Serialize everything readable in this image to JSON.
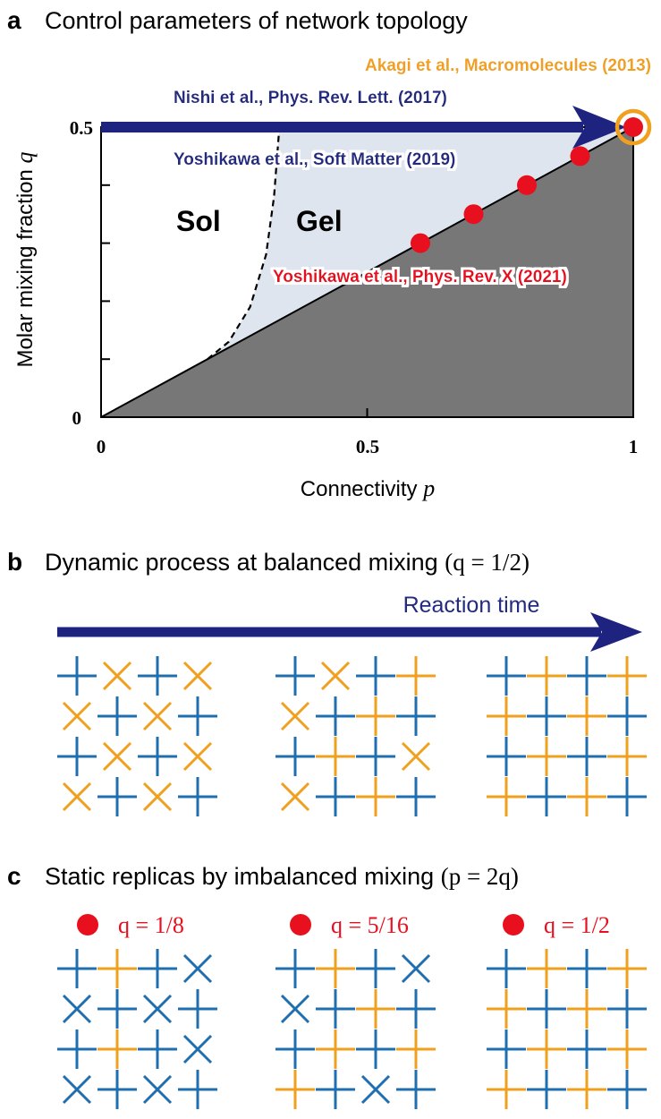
{
  "panel_a": {
    "letter": "a",
    "title": "Control parameters of network topology",
    "xlabel_text": "Connectivity",
    "xlabel_var": "p",
    "ylabel_text": "Molar mixing fraction",
    "ylabel_var": "q",
    "xticks": [
      "0",
      "0.5",
      "1"
    ],
    "yticks": [
      "0",
      "0.5"
    ],
    "region_sol": "Sol",
    "region_gel": "Gel",
    "refs": {
      "akagi": "Akagi et al., Macromolecules (2013)",
      "nishi": "Nishi et al., Phys. Rev. Lett. (2017)",
      "yoshikawa2019": "Yoshikawa et al., Soft Matter (2019)",
      "yoshikawa2021": "Yoshikawa et al., Phys. Rev. X (2021)"
    }
  },
  "chart_data": {
    "type": "scatter",
    "xlim": [
      0,
      1
    ],
    "ylim": [
      0,
      0.5
    ],
    "points": [
      {
        "x": 0.6,
        "y": 0.3
      },
      {
        "x": 0.7,
        "y": 0.35
      },
      {
        "x": 0.8,
        "y": 0.4
      },
      {
        "x": 0.9,
        "y": 0.45
      },
      {
        "x": 1.0,
        "y": 0.5
      }
    ],
    "boundary_line": "q = p/2",
    "gel_transition_curve": [
      [
        0.2,
        0.1
      ],
      [
        0.24,
        0.13
      ],
      [
        0.28,
        0.19
      ],
      [
        0.31,
        0.28
      ],
      [
        0.325,
        0.38
      ],
      [
        0.335,
        0.5
      ]
    ],
    "highlight_point": {
      "x": 1.0,
      "y": 0.5
    },
    "arrow_along": "q = 0.5"
  },
  "panel_b": {
    "letter": "b",
    "title": "Dynamic process at balanced mixing",
    "title_math": "(q = 1/2)",
    "arrow_label": "Reaction time",
    "grids": [
      [
        "bp",
        "ox",
        "bp",
        "ox",
        "ox",
        "bp",
        "ox",
        "bp",
        "bp",
        "ox",
        "bp",
        "ox",
        "ox",
        "bp",
        "ox",
        "bp"
      ],
      [
        "bp",
        "ox",
        "bp",
        "op",
        "ox",
        "bp",
        "op",
        "bp",
        "bp",
        "op",
        "bp",
        "ox",
        "ox",
        "bp",
        "op",
        "bp"
      ],
      [
        "bp",
        "op",
        "bp",
        "op",
        "op",
        "bp",
        "op",
        "bp",
        "bp",
        "op",
        "bp",
        "op",
        "op",
        "bp",
        "op",
        "bp"
      ]
    ]
  },
  "panel_c": {
    "letter": "c",
    "title": "Static replicas by imbalanced mixing",
    "title_math": "(p = 2q)",
    "replicas": [
      {
        "label": "q = 1/8",
        "grid": [
          "bp",
          "op",
          "bp",
          "bx",
          "bx",
          "bp",
          "bx",
          "bp",
          "bp",
          "op",
          "bp",
          "bx",
          "bx",
          "bp",
          "bx",
          "bp"
        ]
      },
      {
        "label": "q = 5/16",
        "grid": [
          "bp",
          "op",
          "bp",
          "bx",
          "bx",
          "bp",
          "op",
          "bp",
          "bp",
          "op",
          "bp",
          "op",
          "op",
          "bp",
          "bx",
          "bp"
        ]
      },
      {
        "label": "q = 1/2",
        "grid": [
          "bp",
          "op",
          "bp",
          "op",
          "op",
          "bp",
          "op",
          "bp",
          "bp",
          "op",
          "bp",
          "op",
          "op",
          "bp",
          "op",
          "bp"
        ]
      }
    ]
  },
  "colors": {
    "blue_node": "#1f6fb0",
    "orange_node": "#f0a01e",
    "navy_arrow": "#1e237f",
    "red_point": "#e8101e",
    "orange_ring": "#f0a01e",
    "gel_fill": "#dfe5ef",
    "dark_fill": "#777777",
    "ref_orange": "#f0a01e",
    "ref_navy": "#232a80",
    "ref_red": "#e8101e"
  }
}
